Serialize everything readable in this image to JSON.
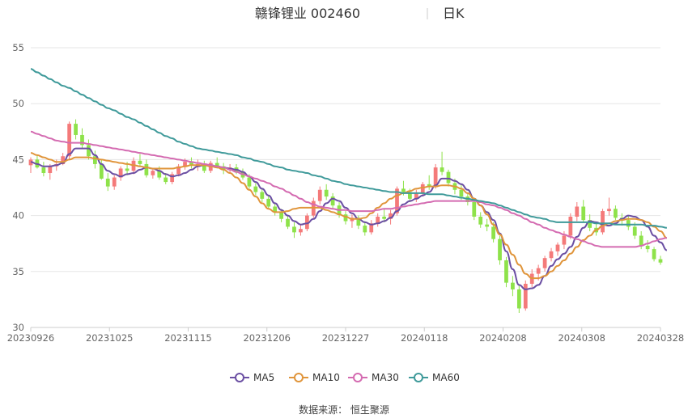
{
  "header": {
    "title": "赣锋锂业 002460",
    "subtitle": "日K"
  },
  "source": "数据来源： 恒生聚源",
  "colors": {
    "up": "#f47a7a",
    "down": "#8ee24a",
    "MA5": "#6b4fa3",
    "MA10": "#e0953b",
    "MA30": "#d46bb1",
    "MA60": "#3f9a9a",
    "grid": "#e6e6e6"
  },
  "chart_data": {
    "type": "candlestick",
    "ylim": [
      30,
      55
    ],
    "yticks": [
      "30",
      "35",
      "40",
      "45",
      "50",
      "55"
    ],
    "xticks": [
      "20230926",
      "20231025",
      "20231115",
      "20231206",
      "20231227",
      "20240118",
      "20240208",
      "20240308",
      "20240328"
    ],
    "candles": [
      [
        44.5,
        45.2,
        43.8,
        45.0
      ],
      [
        45.0,
        45.4,
        44.2,
        44.3
      ],
      [
        44.3,
        44.8,
        43.5,
        43.8
      ],
      [
        43.8,
        44.6,
        43.2,
        44.4
      ],
      [
        44.4,
        45.0,
        44.0,
        44.6
      ],
      [
        44.6,
        45.6,
        44.5,
        45.3
      ],
      [
        45.3,
        48.4,
        45.0,
        48.2
      ],
      [
        48.2,
        48.6,
        46.8,
        47.2
      ],
      [
        47.2,
        47.8,
        46.0,
        46.3
      ],
      [
        46.3,
        46.8,
        45.0,
        45.3
      ],
      [
        45.3,
        45.8,
        44.2,
        44.6
      ],
      [
        44.6,
        45.0,
        43.2,
        43.3
      ],
      [
        43.3,
        43.8,
        42.2,
        42.6
      ],
      [
        42.6,
        43.6,
        42.3,
        43.4
      ],
      [
        43.4,
        44.4,
        43.1,
        44.2
      ],
      [
        44.2,
        44.8,
        43.6,
        44.0
      ],
      [
        44.0,
        45.2,
        43.7,
        44.9
      ],
      [
        44.9,
        45.5,
        44.4,
        44.6
      ],
      [
        44.6,
        45.0,
        43.4,
        43.6
      ],
      [
        43.6,
        44.2,
        43.3,
        44.0
      ],
      [
        44.0,
        44.4,
        43.2,
        43.4
      ],
      [
        43.4,
        43.8,
        42.8,
        43.0
      ],
      [
        43.0,
        43.9,
        42.8,
        43.7
      ],
      [
        43.7,
        44.6,
        43.5,
        44.4
      ],
      [
        44.4,
        45.1,
        44.1,
        44.8
      ],
      [
        44.8,
        45.2,
        44.2,
        44.5
      ],
      [
        44.5,
        45.0,
        44.0,
        44.6
      ],
      [
        44.6,
        44.9,
        43.8,
        44.0
      ],
      [
        44.0,
        44.9,
        43.8,
        44.7
      ],
      [
        44.7,
        45.2,
        44.2,
        44.4
      ],
      [
        44.4,
        44.7,
        43.7,
        44.1
      ],
      [
        44.1,
        44.6,
        43.8,
        44.3
      ],
      [
        44.3,
        44.6,
        43.7,
        43.9
      ],
      [
        43.9,
        44.2,
        43.2,
        43.4
      ],
      [
        43.4,
        43.7,
        42.4,
        42.6
      ],
      [
        42.6,
        42.9,
        41.8,
        42.1
      ],
      [
        42.1,
        42.4,
        41.2,
        41.5
      ],
      [
        41.5,
        41.8,
        40.6,
        40.8
      ],
      [
        40.8,
        41.1,
        40.0,
        40.3
      ],
      [
        40.3,
        40.6,
        39.4,
        39.7
      ],
      [
        39.7,
        40.0,
        38.8,
        39.0
      ],
      [
        39.0,
        39.4,
        38.0,
        38.5
      ],
      [
        38.5,
        39.2,
        38.2,
        38.8
      ],
      [
        38.8,
        40.2,
        38.6,
        40.0
      ],
      [
        40.0,
        41.6,
        39.8,
        41.3
      ],
      [
        41.3,
        42.6,
        41.0,
        42.3
      ],
      [
        42.3,
        42.8,
        41.4,
        41.7
      ],
      [
        41.7,
        42.0,
        40.6,
        40.9
      ],
      [
        40.9,
        41.2,
        39.8,
        40.1
      ],
      [
        40.1,
        40.4,
        39.2,
        39.5
      ],
      [
        39.5,
        40.1,
        38.9,
        39.8
      ],
      [
        39.8,
        40.0,
        38.8,
        39.1
      ],
      [
        39.1,
        39.5,
        38.2,
        38.5
      ],
      [
        38.5,
        39.6,
        38.3,
        39.3
      ],
      [
        39.3,
        40.2,
        39.0,
        39.9
      ],
      [
        39.9,
        40.6,
        39.4,
        39.7
      ],
      [
        39.7,
        40.5,
        39.2,
        40.2
      ],
      [
        40.2,
        42.6,
        40.0,
        42.4
      ],
      [
        42.4,
        43.1,
        41.8,
        42.1
      ],
      [
        42.1,
        42.4,
        41.2,
        41.5
      ],
      [
        41.5,
        42.3,
        41.2,
        42.0
      ],
      [
        42.0,
        43.0,
        41.7,
        42.8
      ],
      [
        42.8,
        43.6,
        42.3,
        42.6
      ],
      [
        42.6,
        44.6,
        42.4,
        44.3
      ],
      [
        44.3,
        45.7,
        43.6,
        43.9
      ],
      [
        43.9,
        44.1,
        42.6,
        42.9
      ],
      [
        42.9,
        43.3,
        41.9,
        42.3
      ],
      [
        42.3,
        42.8,
        41.4,
        41.7
      ],
      [
        41.7,
        42.0,
        40.9,
        41.2
      ],
      [
        41.2,
        41.6,
        39.6,
        39.9
      ],
      [
        39.9,
        40.3,
        38.9,
        39.2
      ],
      [
        39.2,
        39.7,
        38.6,
        39.0
      ],
      [
        39.0,
        39.4,
        37.6,
        37.9
      ],
      [
        37.9,
        38.2,
        35.6,
        36.0
      ],
      [
        36.0,
        36.3,
        33.6,
        34.0
      ],
      [
        34.0,
        34.6,
        32.8,
        33.4
      ],
      [
        33.4,
        33.8,
        31.3,
        31.7
      ],
      [
        31.7,
        34.2,
        31.5,
        33.9
      ],
      [
        33.9,
        35.2,
        33.6,
        34.8
      ],
      [
        34.8,
        35.6,
        34.2,
        35.3
      ],
      [
        35.3,
        36.4,
        35.0,
        36.2
      ],
      [
        36.2,
        37.1,
        35.9,
        36.8
      ],
      [
        36.8,
        37.6,
        36.4,
        37.4
      ],
      [
        37.4,
        38.6,
        37.0,
        38.2
      ],
      [
        38.2,
        40.2,
        37.9,
        39.9
      ],
      [
        39.9,
        41.2,
        39.5,
        40.8
      ],
      [
        40.8,
        41.4,
        39.4,
        39.6
      ],
      [
        39.6,
        40.1,
        38.6,
        38.9
      ],
      [
        38.9,
        39.3,
        38.2,
        38.5
      ],
      [
        38.5,
        40.6,
        38.3,
        40.4
      ],
      [
        40.4,
        41.6,
        40.0,
        40.6
      ],
      [
        40.6,
        40.9,
        39.6,
        39.8
      ],
      [
        39.8,
        40.2,
        39.1,
        39.6
      ],
      [
        39.6,
        40.0,
        38.7,
        39.0
      ],
      [
        39.0,
        39.4,
        37.9,
        38.2
      ],
      [
        38.2,
        38.6,
        37.0,
        37.3
      ],
      [
        37.3,
        37.8,
        36.7,
        37.0
      ],
      [
        37.0,
        37.2,
        35.9,
        36.1
      ],
      [
        36.1,
        36.4,
        35.6,
        35.8
      ]
    ],
    "series": [
      {
        "name": "MA5",
        "colorKey": "MA5",
        "values": [
          44.8,
          44.6,
          44.4,
          44.4,
          44.5,
          44.7,
          45.5,
          46.0,
          46.0,
          46.0,
          45.4,
          44.6,
          44.0,
          43.7,
          43.5,
          43.7,
          43.8,
          44.1,
          44.3,
          44.2,
          44.0,
          43.7,
          43.5,
          43.6,
          43.8,
          44.1,
          44.4,
          44.5,
          44.5,
          44.4,
          44.3,
          44.2,
          44.1,
          43.9,
          43.5,
          43.0,
          42.4,
          41.8,
          41.1,
          40.5,
          40.0,
          39.5,
          39.2,
          39.3,
          39.7,
          40.4,
          41.1,
          41.5,
          41.3,
          40.7,
          40.2,
          39.7,
          39.4,
          39.2,
          39.3,
          39.5,
          39.8,
          40.4,
          41.0,
          41.3,
          41.5,
          41.8,
          42.1,
          42.7,
          43.3,
          43.3,
          43.1,
          42.8,
          42.3,
          41.5,
          40.9,
          40.3,
          39.6,
          38.4,
          36.8,
          35.2,
          33.8,
          33.4,
          33.5,
          33.8,
          34.6,
          35.5,
          36.1,
          36.6,
          37.2,
          38.1,
          38.9,
          39.5,
          39.4,
          39.2,
          39.1,
          39.3,
          39.7,
          40.0,
          39.9,
          39.6,
          39.0,
          38.2,
          37.6,
          36.9
        ]
      },
      {
        "name": "MA10",
        "colorKey": "MA10",
        "values": [
          45.6,
          45.4,
          45.2,
          45.0,
          44.8,
          44.8,
          45.0,
          45.2,
          45.2,
          45.2,
          45.1,
          45.0,
          44.9,
          44.8,
          44.7,
          44.6,
          44.5,
          44.4,
          44.3,
          44.2,
          44.2,
          44.2,
          44.2,
          44.3,
          44.4,
          44.5,
          44.5,
          44.5,
          44.4,
          44.3,
          44.1,
          43.8,
          43.4,
          42.9,
          42.3,
          41.7,
          41.1,
          40.6,
          40.3,
          40.3,
          40.4,
          40.6,
          40.7,
          40.7,
          40.7,
          40.7,
          40.5,
          40.3,
          40.1,
          39.9,
          39.7,
          39.7,
          39.8,
          40.2,
          40.7,
          41.1,
          41.5,
          41.8,
          42.0,
          42.2,
          42.4,
          42.5,
          42.6,
          42.6,
          42.7,
          42.7,
          42.6,
          42.4,
          42.0,
          41.5,
          40.9,
          40.1,
          39.2,
          38.3,
          37.4,
          36.5,
          35.6,
          34.8,
          34.4,
          34.4,
          34.6,
          35.0,
          35.5,
          36.0,
          36.6,
          37.2,
          37.8,
          38.2,
          38.7,
          39.1,
          39.3,
          39.5,
          39.6,
          39.7,
          39.7,
          39.6,
          39.4,
          39.0,
          38.6,
          38.0
        ]
      },
      {
        "name": "MA30",
        "colorKey": "MA30",
        "values": [
          47.5,
          47.3,
          47.1,
          46.9,
          46.7,
          46.6,
          46.5,
          46.5,
          46.5,
          46.4,
          46.3,
          46.2,
          46.1,
          46.0,
          45.9,
          45.8,
          45.7,
          45.6,
          45.5,
          45.4,
          45.3,
          45.2,
          45.1,
          45.0,
          44.9,
          44.8,
          44.7,
          44.6,
          44.5,
          44.4,
          44.3,
          44.1,
          43.9,
          43.7,
          43.5,
          43.3,
          43.1,
          42.9,
          42.6,
          42.4,
          42.1,
          41.8,
          41.5,
          41.2,
          41.0,
          40.8,
          40.7,
          40.6,
          40.5,
          40.5,
          40.4,
          40.4,
          40.4,
          40.4,
          40.5,
          40.6,
          40.6,
          40.7,
          40.8,
          40.9,
          41.0,
          41.1,
          41.2,
          41.3,
          41.3,
          41.3,
          41.3,
          41.3,
          41.3,
          41.3,
          41.2,
          41.0,
          40.9,
          40.7,
          40.5,
          40.2,
          40.0,
          39.7,
          39.4,
          39.2,
          38.9,
          38.7,
          38.5,
          38.3,
          38.1,
          37.9,
          37.7,
          37.5,
          37.3,
          37.2,
          37.2,
          37.2,
          37.2,
          37.2,
          37.2,
          37.3,
          37.5,
          37.7,
          37.9,
          38.0
        ]
      },
      {
        "name": "MA60",
        "colorKey": "MA60",
        "values": [
          53.1,
          52.8,
          52.5,
          52.2,
          51.9,
          51.6,
          51.4,
          51.1,
          50.8,
          50.5,
          50.2,
          49.9,
          49.6,
          49.4,
          49.1,
          48.8,
          48.6,
          48.3,
          48.0,
          47.7,
          47.4,
          47.1,
          46.9,
          46.6,
          46.4,
          46.2,
          46.0,
          45.9,
          45.8,
          45.7,
          45.6,
          45.5,
          45.4,
          45.2,
          45.1,
          44.9,
          44.8,
          44.6,
          44.4,
          44.3,
          44.1,
          44.0,
          43.9,
          43.8,
          43.6,
          43.5,
          43.3,
          43.1,
          43.0,
          42.8,
          42.7,
          42.6,
          42.5,
          42.4,
          42.3,
          42.2,
          42.1,
          42.1,
          42.0,
          42.0,
          42.0,
          42.0,
          41.9,
          41.9,
          41.9,
          41.8,
          41.7,
          41.6,
          41.5,
          41.4,
          41.3,
          41.2,
          41.1,
          40.9,
          40.7,
          40.5,
          40.3,
          40.1,
          39.9,
          39.8,
          39.7,
          39.5,
          39.4,
          39.4,
          39.4,
          39.4,
          39.4,
          39.4,
          39.3,
          39.3,
          39.3,
          39.2,
          39.2,
          39.2,
          39.2,
          39.2,
          39.1,
          39.1,
          39.0,
          38.9
        ]
      }
    ],
    "legend": [
      "MA5",
      "MA10",
      "MA30",
      "MA60"
    ],
    "grid": true,
    "legend_position": "bottom"
  }
}
